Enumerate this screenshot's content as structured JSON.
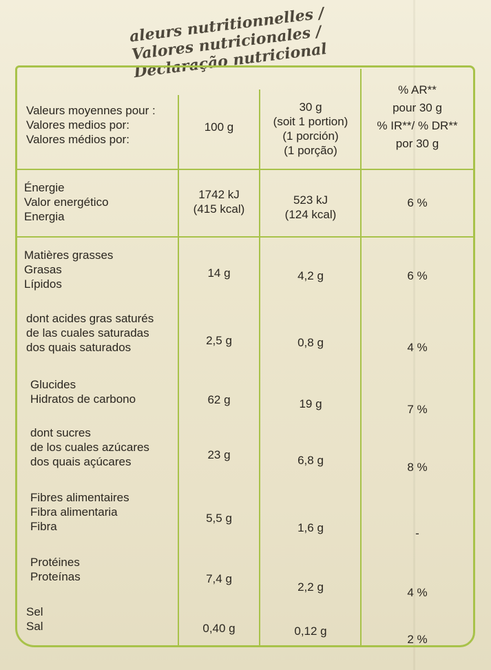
{
  "title": [
    "aleurs nutritionnelles /",
    "Valores nutricionales /",
    "Declaração nutricional"
  ],
  "header": {
    "label": [
      "Valeurs moyennes pour :",
      "Valores medios por:",
      "Valores médios por:"
    ],
    "col100": "100 g",
    "col30": [
      "30 g",
      "(soit 1 portion)",
      "(1 porción)",
      "(1 porção)"
    ],
    "colAR": [
      "% AR**",
      "pour 30 g",
      "% IR**/ % DR**",
      "por 30 g"
    ]
  },
  "rows": [
    {
      "label": [
        "Énergie",
        "Valor energético",
        "Energia"
      ],
      "v100": [
        "1742 kJ",
        "(415 kcal)"
      ],
      "v30": [
        "523 kJ",
        "(124 kcal)"
      ],
      "ar": "6 %"
    },
    {
      "label": [
        "Matières grasses",
        "Grasas",
        "Lípidos"
      ],
      "v100": [
        "14 g"
      ],
      "v30": [
        "4,2 g"
      ],
      "ar": "6 %"
    },
    {
      "label": [
        "dont acides gras saturés",
        "de las cuales saturadas",
        "dos quais saturados"
      ],
      "v100": [
        "2,5 g"
      ],
      "v30": [
        "0,8 g"
      ],
      "ar": "4 %"
    },
    {
      "label": [
        "Glucides",
        "Hidratos de carbono"
      ],
      "v100": [
        "62 g"
      ],
      "v30": [
        "19 g"
      ],
      "ar": "7 %"
    },
    {
      "label": [
        "dont sucres",
        "de los cuales azúcares",
        "dos quais açúcares"
      ],
      "v100": [
        "23 g"
      ],
      "v30": [
        "6,8 g"
      ],
      "ar": "8 %"
    },
    {
      "label": [
        "Fibres alimentaires",
        "Fibra alimentaria",
        "Fibra"
      ],
      "v100": [
        "5,5 g"
      ],
      "v30": [
        "1,6 g"
      ],
      "ar": "-"
    },
    {
      "label": [
        "Protéines",
        "Proteínas"
      ],
      "v100": [
        "7,4 g"
      ],
      "v30": [
        "2,2 g"
      ],
      "ar": "4 %"
    },
    {
      "label": [
        "Sel",
        "Sal"
      ],
      "v100": [
        "0,40 g"
      ],
      "v30": [
        "0,12 g"
      ],
      "ar": "2 %"
    }
  ],
  "colors": {
    "border": "#a8c24a",
    "text": "#2a2620"
  }
}
